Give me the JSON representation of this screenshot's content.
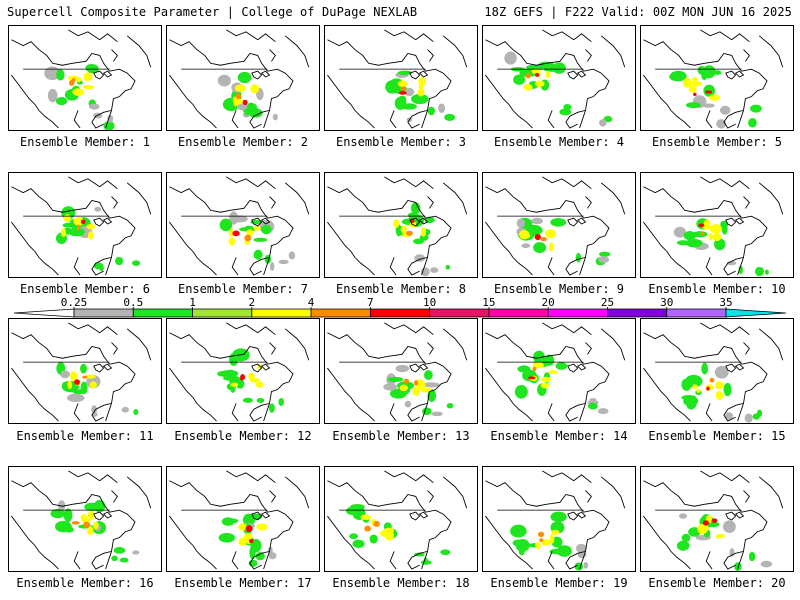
{
  "header": {
    "left_title": "Supercell Composite Parameter | College of DuPage NEXLAB",
    "right_title": "18Z GEFS | F222 Valid: 00Z MON JUN 16 2025"
  },
  "caption_prefix": "Ensemble Member:",
  "members": [
    {
      "label": "Ensemble Member: 1",
      "number": 1
    },
    {
      "label": "Ensemble Member: 2",
      "number": 2
    },
    {
      "label": "Ensemble Member: 3",
      "number": 3
    },
    {
      "label": "Ensemble Member: 4",
      "number": 4
    },
    {
      "label": "Ensemble Member: 5",
      "number": 5
    },
    {
      "label": "Ensemble Member: 6",
      "number": 6
    },
    {
      "label": "Ensemble Member: 7",
      "number": 7
    },
    {
      "label": "Ensemble Member: 8",
      "number": 8
    },
    {
      "label": "Ensemble Member: 9",
      "number": 9
    },
    {
      "label": "Ensemble Member: 10",
      "number": 10
    },
    {
      "label": "Ensemble Member: 11",
      "number": 11
    },
    {
      "label": "Ensemble Member: 12",
      "number": 12
    },
    {
      "label": "Ensemble Member: 13",
      "number": 13
    },
    {
      "label": "Ensemble Member: 14",
      "number": 14
    },
    {
      "label": "Ensemble Member: 15",
      "number": 15
    },
    {
      "label": "Ensemble Member: 16",
      "number": 16
    },
    {
      "label": "Ensemble Member: 17",
      "number": 17
    },
    {
      "label": "Ensemble Member: 18",
      "number": 18
    },
    {
      "label": "Ensemble Member: 19",
      "number": 19
    },
    {
      "label": "Ensemble Member: 20",
      "number": 20
    }
  ],
  "colorbar": {
    "thresholds": [
      "0.25",
      "0.5",
      "1",
      "2",
      "4",
      "7",
      "10",
      "15",
      "20",
      "25",
      "30",
      "35"
    ],
    "colors": [
      "#ffffff",
      "#b4b4b4",
      "#1ee61e",
      "#a0e632",
      "#ffff00",
      "#ff8c00",
      "#ff0000",
      "#e61464",
      "#ff00aa",
      "#ff00ff",
      "#8200dc",
      "#b464ff",
      "#00e6e6"
    ]
  }
}
